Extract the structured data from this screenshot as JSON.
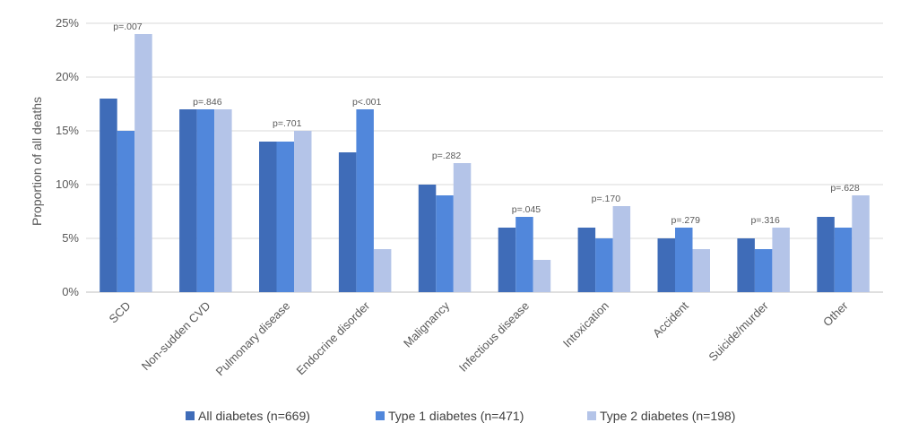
{
  "chart_data": {
    "type": "bar",
    "title": "",
    "xlabel": "",
    "ylabel": "Proportion of all deaths",
    "ylim": [
      0,
      25
    ],
    "yticks": [
      0,
      5,
      10,
      15,
      20,
      25
    ],
    "ytick_labels": [
      "0%",
      "5%",
      "10%",
      "15%",
      "20%",
      "25%"
    ],
    "grid": true,
    "legend_position": "bottom",
    "categories": [
      "SCD",
      "Non-sudden CVD",
      "Pulmonary disease",
      "Endocrine disorder",
      "Malignancy",
      "Infectious disease",
      "Intoxication",
      "Accident",
      "Suicide/murder",
      "Other"
    ],
    "series": [
      {
        "name": "All diabetes (n=669)",
        "color": "#3f6cb8",
        "values": [
          18,
          17,
          14,
          13,
          10,
          6,
          6,
          5,
          5,
          7
        ]
      },
      {
        "name": "Type 1 diabetes (n=471)",
        "color": "#5187db",
        "values": [
          15,
          17,
          14,
          17,
          9,
          7,
          5,
          6,
          4,
          6
        ]
      },
      {
        "name": "Type 2 diabetes (n=198)",
        "color": "#b4c4e8",
        "values": [
          24,
          17,
          15,
          4,
          12,
          3,
          8,
          4,
          6,
          9
        ]
      }
    ],
    "annotations": [
      "p=.007",
      "p=.846",
      "p=.701",
      "p<.001",
      "p=.282",
      "p=.045",
      "p=.170",
      "p=.279",
      "p=.316",
      "p=.628"
    ]
  }
}
